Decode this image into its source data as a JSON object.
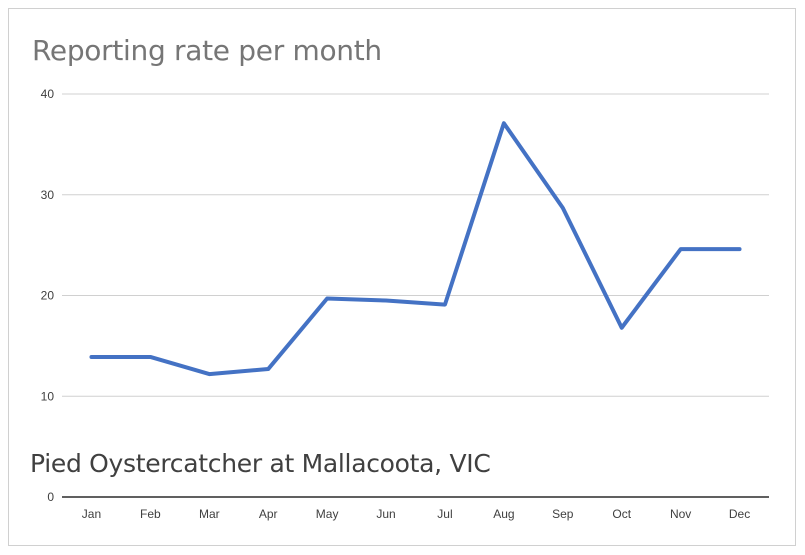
{
  "chart_data": {
    "type": "line",
    "title": "Reporting rate per month",
    "annotation": "Pied Oystercatcher at Mallacoota, VIC",
    "categories": [
      "Jan",
      "Feb",
      "Mar",
      "Apr",
      "May",
      "Jun",
      "Jul",
      "Aug",
      "Sep",
      "Oct",
      "Nov",
      "Dec"
    ],
    "series": [
      {
        "values": [
          13.9,
          13.9,
          12.2,
          12.7,
          19.7,
          19.5,
          19.1,
          37.1,
          28.7,
          16.8,
          24.6,
          24.6
        ],
        "color": "#4472c4"
      }
    ],
    "ylim": [
      0,
      40
    ],
    "yticks": [
      0,
      10,
      20,
      30,
      40
    ],
    "grid": true,
    "xlabel": "",
    "ylabel": ""
  }
}
